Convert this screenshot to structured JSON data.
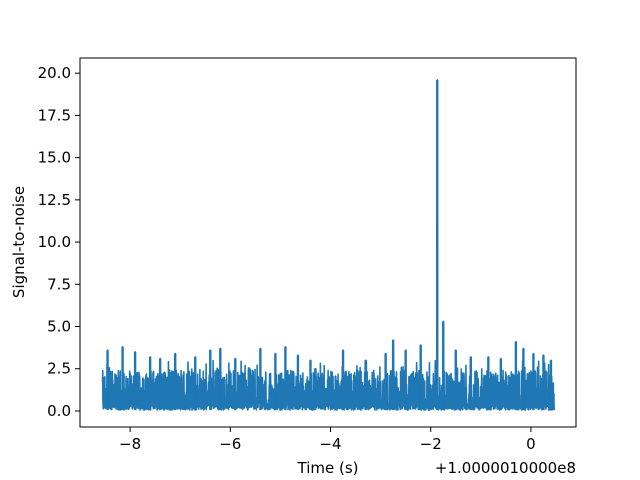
{
  "chart_data": {
    "type": "line",
    "title": "",
    "xlabel": "Time (s)",
    "ylabel": "Signal-to-noise",
    "x_offset_label": "+1.0000010000e8",
    "xlim": [
      -9.0,
      0.9
    ],
    "ylim": [
      -0.95,
      20.9
    ],
    "x_ticks": [
      -8,
      -6,
      -4,
      -2,
      0
    ],
    "x_tick_labels": [
      "−8",
      "−6",
      "−4",
      "−2",
      "0"
    ],
    "y_ticks": [
      0.0,
      2.5,
      5.0,
      7.5,
      10.0,
      12.5,
      15.0,
      17.5,
      20.0
    ],
    "y_tick_labels": [
      "0.0",
      "2.5",
      "5.0",
      "7.5",
      "10.0",
      "12.5",
      "15.0",
      "17.5",
      "20.0"
    ],
    "grid": false,
    "legend": "none",
    "series": [
      {
        "color": "#1f77b4",
        "x_range": [
          -8.55,
          0.47
        ],
        "noise_band": [
          0.05,
          2.4
        ],
        "peaks": [
          {
            "x": -8.45,
            "y": 3.6
          },
          {
            "x": -8.15,
            "y": 3.8
          },
          {
            "x": -7.9,
            "y": 3.5
          },
          {
            "x": -7.6,
            "y": 3.2
          },
          {
            "x": -7.4,
            "y": 3.1
          },
          {
            "x": -7.1,
            "y": 3.4
          },
          {
            "x": -6.7,
            "y": 3.2
          },
          {
            "x": -6.4,
            "y": 3.6
          },
          {
            "x": -6.2,
            "y": 3.7
          },
          {
            "x": -5.9,
            "y": 3.1
          },
          {
            "x": -5.4,
            "y": 3.7
          },
          {
            "x": -5.1,
            "y": 3.4
          },
          {
            "x": -4.9,
            "y": 3.8
          },
          {
            "x": -4.65,
            "y": 3.3
          },
          {
            "x": -4.4,
            "y": 3.0
          },
          {
            "x": -3.75,
            "y": 3.6
          },
          {
            "x": -3.3,
            "y": 3.0
          },
          {
            "x": -2.9,
            "y": 3.4
          },
          {
            "x": -2.75,
            "y": 4.2
          },
          {
            "x": -2.5,
            "y": 3.6
          },
          {
            "x": -2.2,
            "y": 3.9
          },
          {
            "x": -1.87,
            "y": 19.6
          },
          {
            "x": -1.75,
            "y": 5.3
          },
          {
            "x": -1.5,
            "y": 3.6
          },
          {
            "x": -1.2,
            "y": 3.2
          },
          {
            "x": -0.85,
            "y": 3.2
          },
          {
            "x": -0.6,
            "y": 3.1
          },
          {
            "x": -0.3,
            "y": 4.1
          },
          {
            "x": -0.15,
            "y": 3.7
          },
          {
            "x": 0.05,
            "y": 3.4
          },
          {
            "x": 0.25,
            "y": 3.3
          },
          {
            "x": 0.4,
            "y": 3.0
          }
        ]
      }
    ]
  }
}
